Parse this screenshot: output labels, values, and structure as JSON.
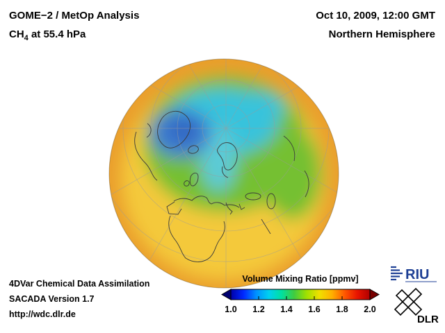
{
  "header": {
    "product": "GOME−2 / MetOp Analysis",
    "species_prefix": "CH",
    "species_sub": "4",
    "species_suffix": " at 55.4 hPa",
    "datetime": "Oct 10, 2009, 12:00 GMT",
    "region": "Northern Hemisphere"
  },
  "credits": {
    "line1": "4DVar Chemical Data Assimilation",
    "line2": "SACADA Version 1.7",
    "line3": "http://wdc.dlr.de"
  },
  "colorbar": {
    "title": "Volume Mixing Ratio [ppmv]",
    "ticks": [
      "1.0",
      "1.2",
      "1.4",
      "1.6",
      "1.8",
      "2.0"
    ],
    "colors": [
      "#0000a8",
      "#0028ff",
      "#0090ff",
      "#00d0f0",
      "#00e0a0",
      "#40cc40",
      "#a0e000",
      "#f0e000",
      "#ffb000",
      "#ff5800",
      "#e81400",
      "#b00000"
    ],
    "under_color": "#000070",
    "over_color": "#780000"
  },
  "logos": {
    "riu": "RIU",
    "dlr": "DLR"
  },
  "chart_data": {
    "type": "heatmap",
    "title": "CH4 volume mixing ratio at 55.4 hPa from GOME-2 / MetOp 4DVar analysis, orthographic Northern Hemisphere view",
    "units": "ppmv",
    "datetime": "Oct 10, 2009, 12:00 GMT",
    "colorbar_range": [
      1.0,
      2.0
    ],
    "colorbar_ticks": [
      1.0,
      1.2,
      1.4,
      1.6,
      1.8,
      2.0
    ],
    "field_summary": [
      {
        "region": "subtropics / globe rim (Africa, Middle East, southern North America)",
        "approx_value_ppmv": 1.65
      },
      {
        "region": "mid-latitudes (Mediterranean, central Europe, central Asia)",
        "approx_value_ppmv": 1.55
      },
      {
        "region": "high mid-latitudes (northern Europe, Siberia)",
        "approx_value_ppmv": 1.45
      },
      {
        "region": "Arctic polar cap ring",
        "approx_value_ppmv": 1.3
      },
      {
        "region": "minimum over Greenland / Canadian Arctic",
        "approx_value_ppmv": 1.2
      }
    ],
    "field_palette": {
      "rim": "#ea9e2c",
      "yellow": "#f4c93a",
      "green": "#74c033",
      "cyan": "#38c3dc",
      "cyan_light": "#5bcbd6",
      "blue": "#3c7cd0",
      "blue_deep": "#2f64bf"
    },
    "map_style": {
      "coastline_color": "#3a3a3a",
      "graticule_color": "#9b9b9b"
    }
  }
}
